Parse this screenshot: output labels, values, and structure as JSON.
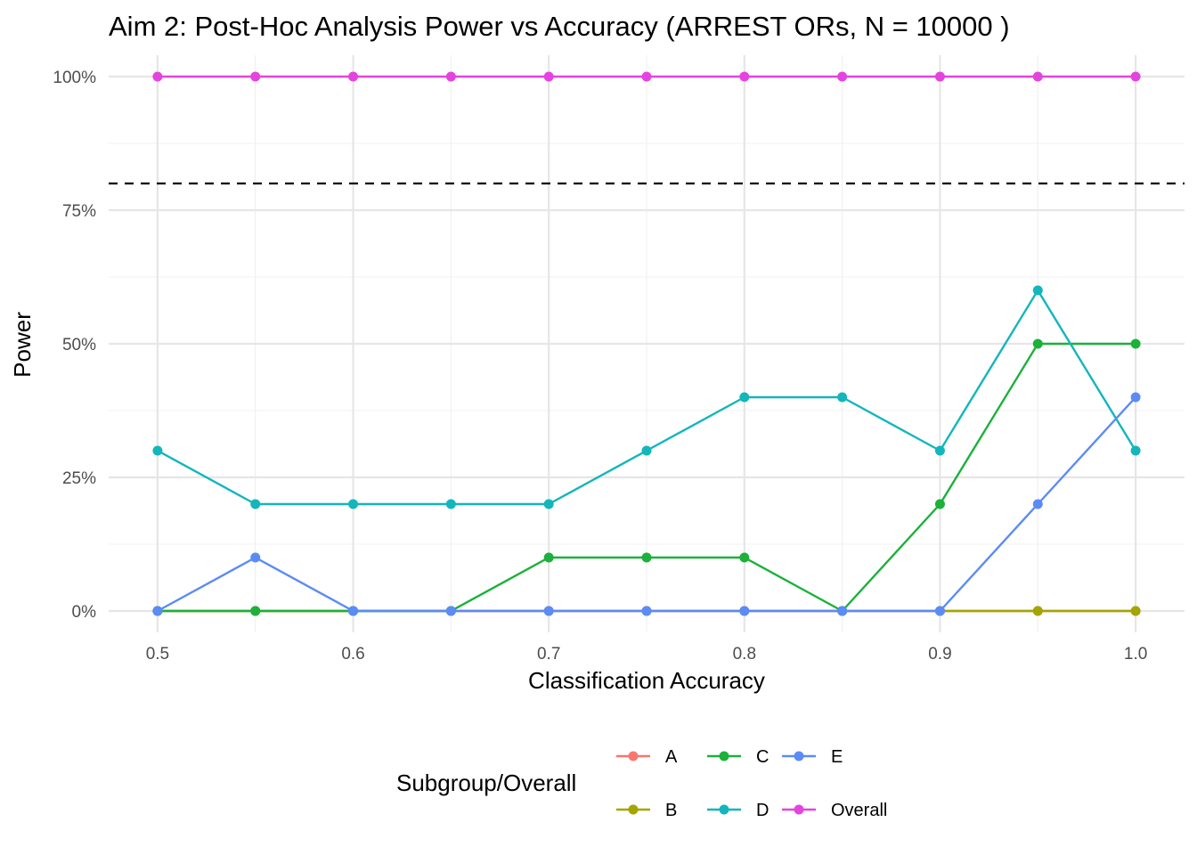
{
  "chart_data": {
    "type": "line",
    "title": "Aim 2: Post-Hoc Analysis Power vs Accuracy (ARREST ORs, N = 10000 )",
    "xlabel": "Classification Accuracy",
    "ylabel": "Power",
    "x": [
      0.5,
      0.55,
      0.6,
      0.65,
      0.7,
      0.75,
      0.8,
      0.85,
      0.9,
      0.95,
      1.0
    ],
    "xlim": [
      0.475,
      1.025
    ],
    "ylim": [
      -0.04,
      1.04
    ],
    "x_ticks": [
      0.5,
      0.6,
      0.7,
      0.8,
      0.9,
      1.0
    ],
    "x_tick_labels": [
      "0.5",
      "0.6",
      "0.7",
      "0.8",
      "0.9",
      "1.0"
    ],
    "y_ticks": [
      0,
      0.25,
      0.5,
      0.75,
      1.0
    ],
    "y_tick_labels": [
      "0%",
      "25%",
      "50%",
      "75%",
      "100%"
    ],
    "reference_line": {
      "y": 0.8,
      "style": "dashed",
      "color": "#000000"
    },
    "grid": true,
    "legend": {
      "title": "Subgroup/Overall",
      "position": "bottom"
    },
    "series": [
      {
        "name": "A",
        "color": "#F8766D",
        "values": [
          0,
          0,
          0,
          0,
          0,
          0,
          0,
          0,
          0,
          0,
          0
        ]
      },
      {
        "name": "B",
        "color": "#A3A500",
        "values": [
          0,
          0,
          0,
          0,
          0,
          0,
          0,
          0,
          0,
          0,
          0
        ]
      },
      {
        "name": "C",
        "color": "#1BB13A",
        "values": [
          0,
          0,
          0,
          0,
          0.1,
          0.1,
          0.1,
          0,
          0.2,
          0.5,
          0.5
        ]
      },
      {
        "name": "D",
        "color": "#13B6BB",
        "values": [
          0.3,
          0.2,
          0.2,
          0.2,
          0.2,
          0.3,
          0.4,
          0.4,
          0.3,
          0.6,
          0.3
        ]
      },
      {
        "name": "E",
        "color": "#5B8BF6",
        "values": [
          0,
          0.1,
          0,
          0,
          0,
          0,
          0,
          0,
          0,
          0.2,
          0.4
        ]
      },
      {
        "name": "Overall",
        "color": "#E543DF",
        "values": [
          1,
          1,
          1,
          1,
          1,
          1,
          1,
          1,
          1,
          1,
          1
        ]
      }
    ]
  }
}
